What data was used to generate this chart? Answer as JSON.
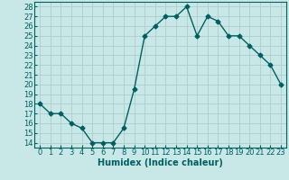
{
  "x": [
    0,
    1,
    2,
    3,
    4,
    5,
    6,
    7,
    8,
    9,
    10,
    11,
    12,
    13,
    14,
    15,
    16,
    17,
    18,
    19,
    20,
    21,
    22,
    23
  ],
  "y": [
    18,
    17,
    17,
    16,
    15.5,
    14,
    14,
    14,
    15.5,
    19.5,
    25,
    26,
    27,
    27,
    28,
    25,
    27,
    26.5,
    25,
    25,
    24,
    23,
    22,
    20
  ],
  "xlabel": "Humidex (Indice chaleur)",
  "xlim": [
    -0.5,
    23.5
  ],
  "ylim": [
    13.5,
    28.5
  ],
  "yticks": [
    14,
    15,
    16,
    17,
    18,
    19,
    20,
    21,
    22,
    23,
    24,
    25,
    26,
    27,
    28
  ],
  "xticks": [
    0,
    1,
    2,
    3,
    4,
    5,
    6,
    7,
    8,
    9,
    10,
    11,
    12,
    13,
    14,
    15,
    16,
    17,
    18,
    19,
    20,
    21,
    22,
    23
  ],
  "line_color": "#005f5f",
  "marker": "D",
  "bg_color": "#c8e8e8",
  "grid_color": "#b0cccc",
  "label_fontsize": 7,
  "tick_fontsize": 6,
  "markersize": 2.5,
  "linewidth": 1.0
}
